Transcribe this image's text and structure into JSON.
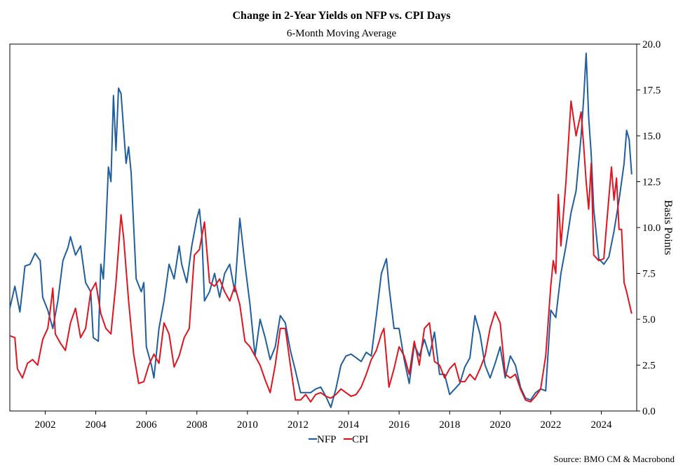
{
  "chart_data": {
    "type": "line",
    "title": "Change in 2-Year Yields on NFP vs. CPI Days",
    "subtitle": "6-Month Moving Average",
    "xlabel": "",
    "ylabel": "Basis Points",
    "xlim": [
      2000.6,
      2025.4
    ],
    "ylim": [
      0,
      20
    ],
    "x_ticks": [
      "2002",
      "2004",
      "2006",
      "2008",
      "2010",
      "2012",
      "2014",
      "2016",
      "2018",
      "2020",
      "2022",
      "2024"
    ],
    "y_ticks": [
      "0.0",
      "2.5",
      "5.0",
      "7.5",
      "10.0",
      "12.5",
      "15.0",
      "17.5",
      "20.0"
    ],
    "y_axis_position": "right",
    "legend_position": "bottom-center",
    "source": "Source: BMO CM & Macrobond",
    "series": [
      {
        "name": "NFP",
        "color": "#1f5f9e",
        "points": [
          [
            2000.6,
            5.6
          ],
          [
            2000.8,
            6.8
          ],
          [
            2001.0,
            5.4
          ],
          [
            2001.2,
            7.9
          ],
          [
            2001.4,
            8.0
          ],
          [
            2001.6,
            8.6
          ],
          [
            2001.8,
            8.2
          ],
          [
            2001.9,
            6.2
          ],
          [
            2002.1,
            5.5
          ],
          [
            2002.3,
            4.5
          ],
          [
            2002.5,
            6.0
          ],
          [
            2002.7,
            8.2
          ],
          [
            2002.9,
            8.9
          ],
          [
            2003.0,
            9.5
          ],
          [
            2003.2,
            8.5
          ],
          [
            2003.4,
            9.0
          ],
          [
            2003.6,
            7.0
          ],
          [
            2003.8,
            6.5
          ],
          [
            2003.9,
            4.0
          ],
          [
            2004.1,
            3.8
          ],
          [
            2004.2,
            8.0
          ],
          [
            2004.3,
            7.2
          ],
          [
            2004.4,
            10.0
          ],
          [
            2004.5,
            13.3
          ],
          [
            2004.6,
            12.5
          ],
          [
            2004.7,
            17.2
          ],
          [
            2004.8,
            14.2
          ],
          [
            2004.9,
            17.6
          ],
          [
            2005.0,
            17.3
          ],
          [
            2005.2,
            13.5
          ],
          [
            2005.3,
            14.4
          ],
          [
            2005.4,
            13.0
          ],
          [
            2005.6,
            7.2
          ],
          [
            2005.8,
            6.5
          ],
          [
            2005.9,
            7.0
          ],
          [
            2006.0,
            3.5
          ],
          [
            2006.2,
            2.5
          ],
          [
            2006.3,
            1.8
          ],
          [
            2006.5,
            4.5
          ],
          [
            2006.7,
            6.0
          ],
          [
            2006.9,
            8.0
          ],
          [
            2007.1,
            7.2
          ],
          [
            2007.3,
            9.0
          ],
          [
            2007.4,
            8.0
          ],
          [
            2007.6,
            7.0
          ],
          [
            2007.8,
            9.0
          ],
          [
            2008.0,
            10.5
          ],
          [
            2008.1,
            11.0
          ],
          [
            2008.2,
            9.5
          ],
          [
            2008.3,
            6.0
          ],
          [
            2008.5,
            6.5
          ],
          [
            2008.7,
            7.5
          ],
          [
            2008.9,
            6.2
          ],
          [
            2009.1,
            7.5
          ],
          [
            2009.3,
            8.0
          ],
          [
            2009.5,
            6.5
          ],
          [
            2009.7,
            10.5
          ],
          [
            2009.9,
            8.0
          ],
          [
            2010.1,
            5.8
          ],
          [
            2010.3,
            3.0
          ],
          [
            2010.5,
            5.0
          ],
          [
            2010.7,
            4.0
          ],
          [
            2010.9,
            2.8
          ],
          [
            2011.1,
            3.5
          ],
          [
            2011.3,
            5.2
          ],
          [
            2011.5,
            4.8
          ],
          [
            2011.7,
            3.3
          ],
          [
            2011.9,
            2.2
          ],
          [
            2012.1,
            1.0
          ],
          [
            2012.3,
            1.0
          ],
          [
            2012.5,
            1.0
          ],
          [
            2012.7,
            1.2
          ],
          [
            2012.9,
            1.3
          ],
          [
            2013.1,
            0.8
          ],
          [
            2013.3,
            0.2
          ],
          [
            2013.5,
            1.2
          ],
          [
            2013.7,
            2.5
          ],
          [
            2013.9,
            3.0
          ],
          [
            2014.1,
            3.1
          ],
          [
            2014.3,
            2.9
          ],
          [
            2014.5,
            2.7
          ],
          [
            2014.7,
            3.2
          ],
          [
            2014.9,
            3.0
          ],
          [
            2015.1,
            5.2
          ],
          [
            2015.3,
            7.5
          ],
          [
            2015.5,
            8.3
          ],
          [
            2015.6,
            6.8
          ],
          [
            2015.8,
            4.5
          ],
          [
            2016.0,
            4.5
          ],
          [
            2016.2,
            2.8
          ],
          [
            2016.4,
            1.5
          ],
          [
            2016.6,
            3.6
          ],
          [
            2016.8,
            3.0
          ],
          [
            2017.0,
            3.9
          ],
          [
            2017.2,
            3.0
          ],
          [
            2017.4,
            4.3
          ],
          [
            2017.6,
            2.0
          ],
          [
            2017.8,
            2.0
          ],
          [
            2018.0,
            0.9
          ],
          [
            2018.2,
            1.2
          ],
          [
            2018.4,
            1.5
          ],
          [
            2018.6,
            2.4
          ],
          [
            2018.8,
            2.9
          ],
          [
            2019.0,
            5.2
          ],
          [
            2019.2,
            4.2
          ],
          [
            2019.4,
            2.5
          ],
          [
            2019.6,
            1.8
          ],
          [
            2019.8,
            2.6
          ],
          [
            2020.0,
            3.5
          ],
          [
            2020.2,
            1.8
          ],
          [
            2020.4,
            3.0
          ],
          [
            2020.6,
            2.5
          ],
          [
            2020.8,
            1.3
          ],
          [
            2021.0,
            0.7
          ],
          [
            2021.2,
            0.6
          ],
          [
            2021.4,
            1.0
          ],
          [
            2021.6,
            1.2
          ],
          [
            2021.8,
            1.1
          ],
          [
            2022.0,
            5.5
          ],
          [
            2022.2,
            5.1
          ],
          [
            2022.4,
            7.5
          ],
          [
            2022.6,
            9.0
          ],
          [
            2022.8,
            10.8
          ],
          [
            2023.0,
            12.0
          ],
          [
            2023.2,
            15.0
          ],
          [
            2023.3,
            17.0
          ],
          [
            2023.4,
            19.5
          ],
          [
            2023.5,
            16.0
          ],
          [
            2023.6,
            14.0
          ],
          [
            2023.7,
            11.0
          ],
          [
            2023.9,
            8.3
          ],
          [
            2024.1,
            8.0
          ],
          [
            2024.3,
            8.4
          ],
          [
            2024.5,
            9.8
          ],
          [
            2024.7,
            11.5
          ],
          [
            2024.9,
            13.5
          ],
          [
            2025.0,
            15.3
          ],
          [
            2025.1,
            14.8
          ],
          [
            2025.2,
            12.9
          ]
        ]
      },
      {
        "name": "CPI",
        "color": "#e0141e",
        "points": [
          [
            2000.6,
            4.1
          ],
          [
            2000.8,
            4.0
          ],
          [
            2000.9,
            2.3
          ],
          [
            2001.1,
            1.8
          ],
          [
            2001.3,
            2.6
          ],
          [
            2001.5,
            2.8
          ],
          [
            2001.7,
            2.5
          ],
          [
            2001.9,
            3.9
          ],
          [
            2002.1,
            4.5
          ],
          [
            2002.2,
            5.5
          ],
          [
            2002.3,
            6.7
          ],
          [
            2002.4,
            4.2
          ],
          [
            2002.6,
            3.7
          ],
          [
            2002.8,
            3.3
          ],
          [
            2003.0,
            4.8
          ],
          [
            2003.2,
            5.6
          ],
          [
            2003.4,
            4.0
          ],
          [
            2003.6,
            4.5
          ],
          [
            2003.8,
            6.5
          ],
          [
            2004.0,
            7.0
          ],
          [
            2004.2,
            5.3
          ],
          [
            2004.4,
            4.5
          ],
          [
            2004.6,
            4.2
          ],
          [
            2004.8,
            7.0
          ],
          [
            2005.0,
            10.7
          ],
          [
            2005.1,
            9.5
          ],
          [
            2005.3,
            6.0
          ],
          [
            2005.5,
            3.1
          ],
          [
            2005.7,
            1.5
          ],
          [
            2005.9,
            1.6
          ],
          [
            2006.1,
            2.5
          ],
          [
            2006.3,
            3.1
          ],
          [
            2006.5,
            2.6
          ],
          [
            2006.7,
            4.8
          ],
          [
            2006.9,
            4.2
          ],
          [
            2007.1,
            2.4
          ],
          [
            2007.3,
            3.0
          ],
          [
            2007.5,
            4.0
          ],
          [
            2007.7,
            4.5
          ],
          [
            2007.9,
            8.5
          ],
          [
            2008.1,
            8.8
          ],
          [
            2008.3,
            10.3
          ],
          [
            2008.5,
            7.0
          ],
          [
            2008.7,
            6.8
          ],
          [
            2008.9,
            7.2
          ],
          [
            2009.1,
            6.5
          ],
          [
            2009.3,
            6.0
          ],
          [
            2009.5,
            6.8
          ],
          [
            2009.7,
            5.8
          ],
          [
            2009.9,
            3.8
          ],
          [
            2010.1,
            3.5
          ],
          [
            2010.3,
            3.0
          ],
          [
            2010.5,
            2.5
          ],
          [
            2010.7,
            1.7
          ],
          [
            2010.9,
            1.0
          ],
          [
            2011.1,
            2.5
          ],
          [
            2011.3,
            4.5
          ],
          [
            2011.5,
            4.5
          ],
          [
            2011.7,
            2.5
          ],
          [
            2011.9,
            0.6
          ],
          [
            2012.1,
            0.6
          ],
          [
            2012.3,
            0.9
          ],
          [
            2012.5,
            0.5
          ],
          [
            2012.7,
            0.9
          ],
          [
            2012.9,
            1.0
          ],
          [
            2013.1,
            0.8
          ],
          [
            2013.3,
            0.7
          ],
          [
            2013.5,
            0.9
          ],
          [
            2013.7,
            1.2
          ],
          [
            2013.9,
            1.0
          ],
          [
            2014.1,
            0.8
          ],
          [
            2014.3,
            0.9
          ],
          [
            2014.5,
            1.3
          ],
          [
            2014.7,
            2.0
          ],
          [
            2014.9,
            2.8
          ],
          [
            2015.1,
            3.3
          ],
          [
            2015.3,
            4.2
          ],
          [
            2015.4,
            4.5
          ],
          [
            2015.6,
            1.3
          ],
          [
            2015.8,
            2.3
          ],
          [
            2016.0,
            3.5
          ],
          [
            2016.2,
            3.0
          ],
          [
            2016.4,
            2.0
          ],
          [
            2016.6,
            3.8
          ],
          [
            2016.8,
            2.5
          ],
          [
            2017.0,
            4.5
          ],
          [
            2017.2,
            4.8
          ],
          [
            2017.4,
            2.7
          ],
          [
            2017.6,
            2.5
          ],
          [
            2017.8,
            1.8
          ],
          [
            2018.0,
            2.3
          ],
          [
            2018.2,
            2.6
          ],
          [
            2018.4,
            1.6
          ],
          [
            2018.6,
            1.6
          ],
          [
            2018.8,
            2.0
          ],
          [
            2019.0,
            1.7
          ],
          [
            2019.2,
            2.3
          ],
          [
            2019.4,
            3.0
          ],
          [
            2019.6,
            4.5
          ],
          [
            2019.8,
            5.4
          ],
          [
            2020.0,
            4.8
          ],
          [
            2020.2,
            2.0
          ],
          [
            2020.4,
            1.8
          ],
          [
            2020.6,
            2.0
          ],
          [
            2020.8,
            1.2
          ],
          [
            2021.0,
            0.6
          ],
          [
            2021.2,
            0.5
          ],
          [
            2021.4,
            0.8
          ],
          [
            2021.6,
            1.2
          ],
          [
            2021.8,
            3.0
          ],
          [
            2022.0,
            6.8
          ],
          [
            2022.1,
            8.2
          ],
          [
            2022.2,
            7.5
          ],
          [
            2022.3,
            11.8
          ],
          [
            2022.4,
            9.0
          ],
          [
            2022.6,
            12.5
          ],
          [
            2022.8,
            16.9
          ],
          [
            2023.0,
            15.0
          ],
          [
            2023.2,
            16.3
          ],
          [
            2023.3,
            14.5
          ],
          [
            2023.4,
            12.5
          ],
          [
            2023.5,
            11.0
          ],
          [
            2023.6,
            13.5
          ],
          [
            2023.7,
            8.5
          ],
          [
            2023.9,
            8.2
          ],
          [
            2024.1,
            8.3
          ],
          [
            2024.2,
            10.0
          ],
          [
            2024.4,
            13.3
          ],
          [
            2024.5,
            11.5
          ],
          [
            2024.6,
            12.7
          ],
          [
            2024.7,
            9.9
          ],
          [
            2024.8,
            9.9
          ],
          [
            2024.9,
            7.0
          ],
          [
            2025.0,
            6.5
          ],
          [
            2025.2,
            5.3
          ]
        ]
      }
    ]
  }
}
